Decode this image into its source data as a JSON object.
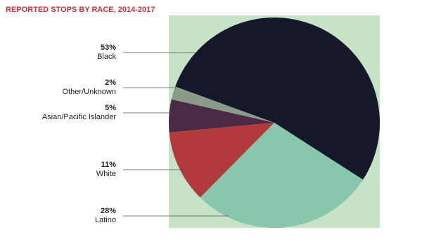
{
  "chart_data": {
    "type": "pie",
    "title": "REPORTED STOPS BY RACE, 2014-2017",
    "categories": [
      "Black",
      "Other/Unknown",
      "Asian/Pacific Islander",
      "White",
      "Latino"
    ],
    "values": [
      53,
      2,
      5,
      11,
      28
    ],
    "value_labels": [
      "53%",
      "2%",
      "5%",
      "11%",
      "28%"
    ],
    "colors": [
      "#15172b",
      "#8a9c89",
      "#4a2b46",
      "#b23a3d",
      "#89c7ad"
    ]
  }
}
